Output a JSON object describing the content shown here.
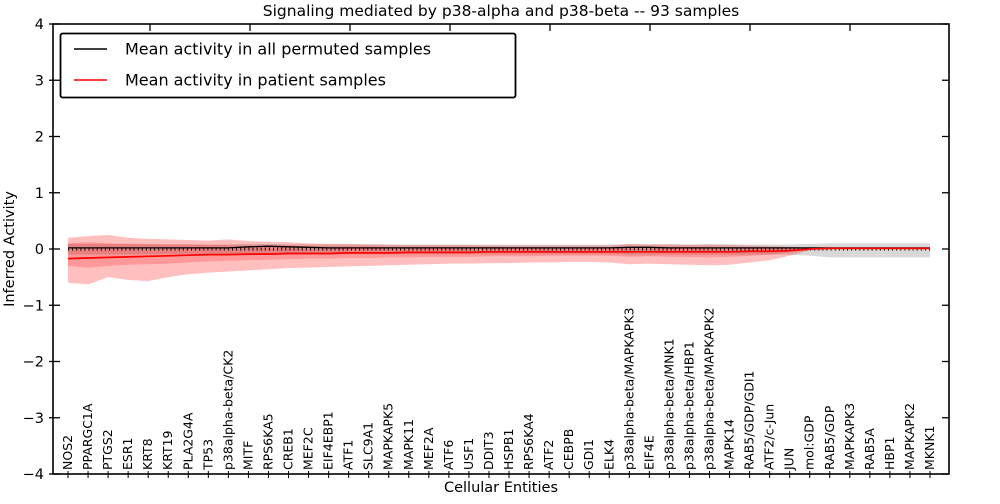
{
  "figure": {
    "title": "Signaling mediated by p38-alpha and p38-beta -- 93 samples",
    "xlabel": "Cellular Entities",
    "ylabel": "Inferred Activity"
  },
  "legend": {
    "items": [
      {
        "label": "Mean activity in all permuted samples",
        "color": "#000000"
      },
      {
        "label": "Mean activity in patient samples",
        "color": "#ff0000"
      }
    ],
    "position": "upper left"
  },
  "colors": {
    "permuted_line": "#000000",
    "patient_line": "#ff0000",
    "permuted_band": "#999999",
    "patient_band": "#ff0000",
    "axis": "#000000",
    "background": "#ffffff"
  },
  "chart_data": {
    "type": "line",
    "title": "Signaling mediated by p38-alpha and p38-beta -- 93 samples",
    "xlabel": "Cellular Entities",
    "ylabel": "Inferred Activity",
    "ylim": [
      -4,
      4
    ],
    "yticks": [
      -4,
      -3,
      -2,
      -1,
      0,
      1,
      2,
      3,
      4
    ],
    "grid": false,
    "legend_position": "upper left",
    "zero_line": {
      "y": 0,
      "style": "dotted",
      "color": "#000000"
    },
    "categories": [
      "NOS2",
      "PPARGC1A",
      "PTGS2",
      "ESR1",
      "KRT8",
      "KRT19",
      "PLA2G4A",
      "TP53",
      "p38alpha-beta/CK2",
      "MITF",
      "RPS6KA5",
      "CREB1",
      "MEF2C",
      "EIF4EBP1",
      "ATF1",
      "SLC9A1",
      "MAPKAPK5",
      "MAPK11",
      "MEF2A",
      "ATF6",
      "USF1",
      "DDIT3",
      "HSPB1",
      "RPS6KA4",
      "ATF2",
      "CEBPB",
      "GDI1",
      "ELK4",
      "p38alpha-beta/MAPKAPK3",
      "EIF4E",
      "p38alpha-beta/MNK1",
      "p38alpha-beta/HBP1",
      "p38alpha-beta/MAPKAPK2",
      "MAPK14",
      "RAB5/GDP/GDI1",
      "ATF2/c-Jun",
      "JUN",
      "mol:GDP",
      "RAB5/GDP",
      "MAPKAPK3",
      "RAB5A",
      "HBP1",
      "MAPKAPK2",
      "MKNK1"
    ],
    "series": [
      {
        "name": "Mean activity in all permuted samples",
        "color": "#000000",
        "values": [
          0.02,
          0.02,
          0.02,
          0.02,
          0.02,
          0.02,
          0.02,
          0.02,
          0.02,
          0.04,
          0.05,
          0.04,
          0.03,
          0.02,
          0.02,
          0.02,
          0.02,
          0.02,
          0.02,
          0.02,
          0.02,
          0.02,
          0.02,
          0.02,
          0.02,
          0.02,
          0.02,
          0.02,
          0.03,
          0.03,
          0.02,
          0.02,
          0.02,
          0.02,
          0.02,
          0.02,
          0.02,
          0.02,
          0.02,
          0.02,
          0.02,
          0.02,
          0.02,
          0.02
        ]
      },
      {
        "name": "Mean activity in patient samples",
        "color": "#ff0000",
        "values": [
          -0.17,
          -0.16,
          -0.15,
          -0.14,
          -0.13,
          -0.12,
          -0.11,
          -0.1,
          -0.1,
          -0.09,
          -0.09,
          -0.08,
          -0.08,
          -0.08,
          -0.07,
          -0.07,
          -0.07,
          -0.06,
          -0.06,
          -0.06,
          -0.06,
          -0.05,
          -0.05,
          -0.05,
          -0.05,
          -0.05,
          -0.05,
          -0.05,
          -0.05,
          -0.05,
          -0.05,
          -0.05,
          -0.05,
          -0.05,
          -0.04,
          -0.04,
          -0.03,
          0.0,
          0.01,
          0.01,
          0.01,
          0.01,
          0.01,
          0.01
        ]
      }
    ],
    "bands": [
      {
        "name": "permuted-range",
        "color": "#999999",
        "opacity": 0.38,
        "upper": [
          0.09,
          0.09,
          0.09,
          0.09,
          0.085,
          0.085,
          0.085,
          0.085,
          0.085,
          0.09,
          0.09,
          0.085,
          0.085,
          0.085,
          0.085,
          0.085,
          0.08,
          0.08,
          0.08,
          0.08,
          0.08,
          0.08,
          0.08,
          0.08,
          0.08,
          0.08,
          0.08,
          0.08,
          0.085,
          0.085,
          0.085,
          0.085,
          0.085,
          0.085,
          0.08,
          0.08,
          0.08,
          0.09,
          0.1,
          0.1,
          0.1,
          0.1,
          0.1,
          0.1
        ],
        "lower": [
          -0.1,
          -0.1,
          -0.1,
          -0.1,
          -0.09,
          -0.09,
          -0.09,
          -0.09,
          -0.09,
          -0.09,
          -0.09,
          -0.09,
          -0.09,
          -0.09,
          -0.09,
          -0.09,
          -0.09,
          -0.09,
          -0.09,
          -0.09,
          -0.09,
          -0.09,
          -0.09,
          -0.09,
          -0.09,
          -0.09,
          -0.09,
          -0.09,
          -0.1,
          -0.1,
          -0.1,
          -0.1,
          -0.1,
          -0.1,
          -0.1,
          -0.1,
          -0.1,
          -0.12,
          -0.15,
          -0.15,
          -0.15,
          -0.15,
          -0.15,
          -0.15
        ]
      },
      {
        "name": "patient-outer",
        "color": "#ff0000",
        "opacity": 0.25,
        "upper": [
          0.2,
          0.23,
          0.25,
          0.2,
          0.18,
          0.17,
          0.16,
          0.15,
          0.17,
          0.14,
          0.13,
          0.12,
          0.1,
          0.09,
          0.09,
          0.08,
          0.08,
          0.07,
          0.07,
          0.07,
          0.07,
          0.06,
          0.06,
          0.06,
          0.06,
          0.06,
          0.06,
          0.06,
          0.09,
          0.08,
          0.08,
          0.07,
          0.08,
          0.07,
          0.06,
          0.05,
          0.04,
          0.02,
          null,
          null,
          null,
          null,
          null,
          null
        ],
        "lower": [
          -0.6,
          -0.63,
          -0.5,
          -0.55,
          -0.57,
          -0.5,
          -0.45,
          -0.42,
          -0.4,
          -0.38,
          -0.36,
          -0.34,
          -0.33,
          -0.32,
          -0.31,
          -0.3,
          -0.29,
          -0.28,
          -0.27,
          -0.26,
          -0.26,
          -0.25,
          -0.25,
          -0.24,
          -0.24,
          -0.23,
          -0.23,
          -0.24,
          -0.27,
          -0.26,
          -0.27,
          -0.28,
          -0.29,
          -0.28,
          -0.24,
          -0.2,
          -0.12,
          -0.02,
          null,
          null,
          null,
          null,
          null,
          null
        ]
      },
      {
        "name": "patient-inner",
        "color": "#ff0000",
        "opacity": 0.2,
        "upper": [
          0.1,
          0.12,
          0.1,
          0.09,
          0.09,
          0.08,
          0.08,
          0.07,
          0.07,
          0.06,
          0.06,
          0.06,
          0.05,
          0.05,
          0.05,
          0.05,
          0.04,
          0.04,
          0.04,
          0.04,
          0.04,
          0.04,
          0.03,
          0.03,
          0.03,
          0.03,
          0.03,
          0.03,
          0.04,
          0.04,
          0.04,
          0.04,
          0.04,
          0.03,
          0.03,
          0.02,
          0.02,
          0.01,
          null,
          null,
          null,
          null,
          null,
          null
        ],
        "lower": [
          -0.3,
          -0.33,
          -0.3,
          -0.28,
          -0.27,
          -0.26,
          -0.24,
          -0.22,
          -0.21,
          -0.2,
          -0.19,
          -0.18,
          -0.17,
          -0.17,
          -0.16,
          -0.16,
          -0.15,
          -0.15,
          -0.14,
          -0.14,
          -0.14,
          -0.13,
          -0.13,
          -0.13,
          -0.12,
          -0.12,
          -0.12,
          -0.12,
          -0.14,
          -0.13,
          -0.14,
          -0.14,
          -0.15,
          -0.14,
          -0.12,
          -0.1,
          -0.06,
          -0.01,
          null,
          null,
          null,
          null,
          null,
          null
        ]
      }
    ]
  }
}
